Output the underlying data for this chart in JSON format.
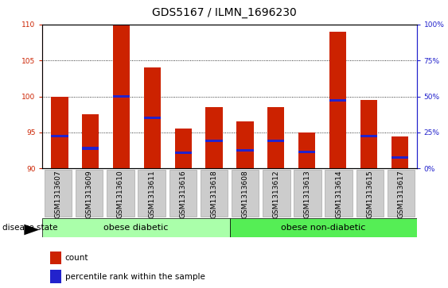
{
  "title": "GDS5167 / ILMN_1696230",
  "samples": [
    "GSM1313607",
    "GSM1313609",
    "GSM1313610",
    "GSM1313611",
    "GSM1313616",
    "GSM1313618",
    "GSM1313608",
    "GSM1313612",
    "GSM1313613",
    "GSM1313614",
    "GSM1313615",
    "GSM1313617"
  ],
  "count_values": [
    100.0,
    97.5,
    110.0,
    104.0,
    95.5,
    98.5,
    96.5,
    98.5,
    95.0,
    109.0,
    99.5,
    94.5
  ],
  "percentile_values": [
    94.5,
    92.8,
    100.0,
    97.0,
    92.2,
    93.8,
    92.5,
    93.8,
    92.3,
    99.5,
    94.5,
    91.5
  ],
  "bar_bottom": 90,
  "ylim_left": [
    90,
    110
  ],
  "ylim_right": [
    0,
    100
  ],
  "yticks_left": [
    90,
    95,
    100,
    105,
    110
  ],
  "yticks_right": [
    0,
    25,
    50,
    75,
    100
  ],
  "bar_color": "#cc2200",
  "percentile_color": "#2222cc",
  "group1_label": "obese diabetic",
  "group2_label": "obese non-diabetic",
  "group_bg_color1": "#aaffaa",
  "group_bg_color2": "#55ee55",
  "disease_state_label": "disease state",
  "legend_count_label": "count",
  "legend_percentile_label": "percentile rank within the sample",
  "bar_width": 0.55,
  "title_fontsize": 10,
  "tick_fontsize": 6.5,
  "label_fontsize": 7.5,
  "group_fontsize": 8
}
